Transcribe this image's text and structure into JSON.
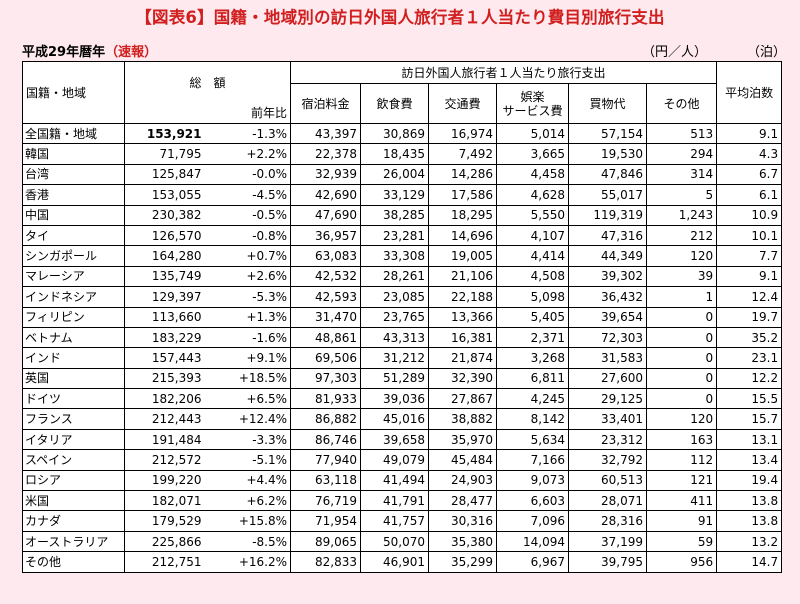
{
  "title": "【図表6】国籍・地域別の訪日外国人旅行者１人当たり費目別旅行支出",
  "subtitle_prefix": "平成29年暦年",
  "subtitle_note": "（速報）",
  "unit_yen": "（円／人）",
  "unit_nights": "（泊）",
  "colors": {
    "title": "#d11f1f",
    "background": "#fde9ee",
    "table": "#ffffff"
  },
  "headers": {
    "country": "国籍・地域",
    "total": "総　額",
    "yoy": "前年比",
    "group": "訪日外国人旅行者１人当たり旅行支出",
    "lodging": "宿泊料金",
    "food": "飲食費",
    "transport": "交通費",
    "entertainment_1": "娯楽",
    "entertainment_2": "サービス費",
    "shopping": "買物代",
    "other": "その他",
    "nights": "平均泊数"
  },
  "rows": [
    {
      "name": "全国籍・地域",
      "total": "153,921",
      "yoy": "-1.3%",
      "lodging": "43,397",
      "food": "30,869",
      "transport": "16,974",
      "entertainment": "5,014",
      "shopping": "57,154",
      "other": "513",
      "nights": "9.1"
    },
    {
      "name": "韓国",
      "total": "71,795",
      "yoy": "+2.2%",
      "lodging": "22,378",
      "food": "18,435",
      "transport": "7,492",
      "entertainment": "3,665",
      "shopping": "19,530",
      "other": "294",
      "nights": "4.3"
    },
    {
      "name": "台湾",
      "total": "125,847",
      "yoy": "-0.0%",
      "lodging": "32,939",
      "food": "26,004",
      "transport": "14,286",
      "entertainment": "4,458",
      "shopping": "47,846",
      "other": "314",
      "nights": "6.7"
    },
    {
      "name": "香港",
      "total": "153,055",
      "yoy": "-4.5%",
      "lodging": "42,690",
      "food": "33,129",
      "transport": "17,586",
      "entertainment": "4,628",
      "shopping": "55,017",
      "other": "5",
      "nights": "6.1"
    },
    {
      "name": "中国",
      "total": "230,382",
      "yoy": "-0.5%",
      "lodging": "47,690",
      "food": "38,285",
      "transport": "18,295",
      "entertainment": "5,550",
      "shopping": "119,319",
      "other": "1,243",
      "nights": "10.9"
    },
    {
      "name": "タイ",
      "total": "126,570",
      "yoy": "-0.8%",
      "lodging": "36,957",
      "food": "23,281",
      "transport": "14,696",
      "entertainment": "4,107",
      "shopping": "47,316",
      "other": "212",
      "nights": "10.1"
    },
    {
      "name": "シンガポール",
      "total": "164,280",
      "yoy": "+0.7%",
      "lodging": "63,083",
      "food": "33,308",
      "transport": "19,005",
      "entertainment": "4,414",
      "shopping": "44,349",
      "other": "120",
      "nights": "7.7"
    },
    {
      "name": "マレーシア",
      "total": "135,749",
      "yoy": "+2.6%",
      "lodging": "42,532",
      "food": "28,261",
      "transport": "21,106",
      "entertainment": "4,508",
      "shopping": "39,302",
      "other": "39",
      "nights": "9.1"
    },
    {
      "name": "インドネシア",
      "total": "129,397",
      "yoy": "-5.3%",
      "lodging": "42,593",
      "food": "23,085",
      "transport": "22,188",
      "entertainment": "5,098",
      "shopping": "36,432",
      "other": "1",
      "nights": "12.4"
    },
    {
      "name": "フィリピン",
      "total": "113,660",
      "yoy": "+1.3%",
      "lodging": "31,470",
      "food": "23,765",
      "transport": "13,366",
      "entertainment": "5,405",
      "shopping": "39,654",
      "other": "0",
      "nights": "19.7"
    },
    {
      "name": "ベトナム",
      "total": "183,229",
      "yoy": "-1.6%",
      "lodging": "48,861",
      "food": "43,313",
      "transport": "16,381",
      "entertainment": "2,371",
      "shopping": "72,303",
      "other": "0",
      "nights": "35.2"
    },
    {
      "name": "インド",
      "total": "157,443",
      "yoy": "+9.1%",
      "lodging": "69,506",
      "food": "31,212",
      "transport": "21,874",
      "entertainment": "3,268",
      "shopping": "31,583",
      "other": "0",
      "nights": "23.1"
    },
    {
      "name": "英国",
      "total": "215,393",
      "yoy": "+18.5%",
      "lodging": "97,303",
      "food": "51,289",
      "transport": "32,390",
      "entertainment": "6,811",
      "shopping": "27,600",
      "other": "0",
      "nights": "12.2"
    },
    {
      "name": "ドイツ",
      "total": "182,206",
      "yoy": "+6.5%",
      "lodging": "81,933",
      "food": "39,036",
      "transport": "27,867",
      "entertainment": "4,245",
      "shopping": "29,125",
      "other": "0",
      "nights": "15.5"
    },
    {
      "name": "フランス",
      "total": "212,443",
      "yoy": "+12.4%",
      "lodging": "86,882",
      "food": "45,016",
      "transport": "38,882",
      "entertainment": "8,142",
      "shopping": "33,401",
      "other": "120",
      "nights": "15.7"
    },
    {
      "name": "イタリア",
      "total": "191,484",
      "yoy": "-3.3%",
      "lodging": "86,746",
      "food": "39,658",
      "transport": "35,970",
      "entertainment": "5,634",
      "shopping": "23,312",
      "other": "163",
      "nights": "13.1"
    },
    {
      "name": "スペイン",
      "total": "212,572",
      "yoy": "-5.1%",
      "lodging": "77,940",
      "food": "49,079",
      "transport": "45,484",
      "entertainment": "7,166",
      "shopping": "32,792",
      "other": "112",
      "nights": "13.4"
    },
    {
      "name": "ロシア",
      "total": "199,220",
      "yoy": "+4.4%",
      "lodging": "63,118",
      "food": "41,494",
      "transport": "24,903",
      "entertainment": "9,073",
      "shopping": "60,513",
      "other": "121",
      "nights": "19.4"
    },
    {
      "name": "米国",
      "total": "182,071",
      "yoy": "+6.2%",
      "lodging": "76,719",
      "food": "41,791",
      "transport": "28,477",
      "entertainment": "6,603",
      "shopping": "28,071",
      "other": "411",
      "nights": "13.8"
    },
    {
      "name": "カナダ",
      "total": "179,529",
      "yoy": "+15.8%",
      "lodging": "71,954",
      "food": "41,757",
      "transport": "30,316",
      "entertainment": "7,096",
      "shopping": "28,316",
      "other": "91",
      "nights": "13.8"
    },
    {
      "name": "オーストラリア",
      "total": "225,866",
      "yoy": "-8.5%",
      "lodging": "89,065",
      "food": "50,070",
      "transport": "35,380",
      "entertainment": "14,094",
      "shopping": "37,199",
      "other": "59",
      "nights": "13.2"
    },
    {
      "name": "その他",
      "total": "212,751",
      "yoy": "+16.2%",
      "lodging": "82,833",
      "food": "46,901",
      "transport": "35,299",
      "entertainment": "6,967",
      "shopping": "39,795",
      "other": "956",
      "nights": "14.7"
    }
  ]
}
